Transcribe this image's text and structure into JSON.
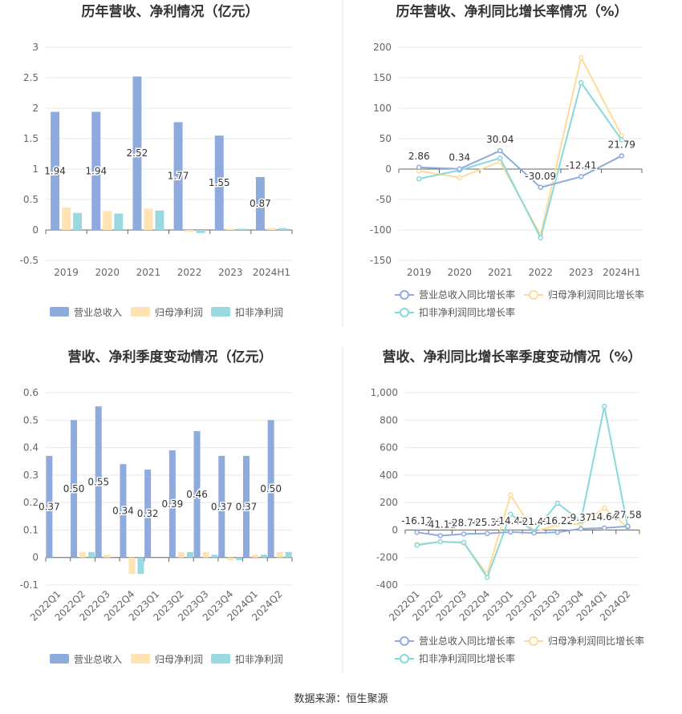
{
  "source_text": "数据来源：恒生聚源",
  "colors": {
    "revenue": "#8faadc",
    "net_profit": "#ffe3b3",
    "deducted_profit": "#9ad9df",
    "revenue_line": "#8faadc",
    "net_profit_line": "#ffdb9a",
    "deducted_line": "#88d8dc",
    "grid": "#e8e8e8",
    "divider": "#e6e6e6"
  },
  "chart_data": [
    {
      "type": "bar",
      "title": "历年营收、净利情况（亿元）",
      "categories": [
        "2019",
        "2020",
        "2021",
        "2022",
        "2023",
        "2024H1"
      ],
      "ylim": [
        -0.5,
        3
      ],
      "yticks": [
        "-0.5",
        "0",
        "0.5",
        "1",
        "1.5",
        "2",
        "2.5",
        "3"
      ],
      "ytick_values": [
        -0.5,
        0,
        0.5,
        1,
        1.5,
        2,
        2.5,
        3
      ],
      "series": [
        {
          "name": "营业总收入",
          "values": [
            1.94,
            1.94,
            2.52,
            1.77,
            1.55,
            0.87
          ],
          "labels": [
            "1.94",
            "1.94",
            "2.52",
            "1.77",
            "1.55",
            "0.87"
          ]
        },
        {
          "name": "归母净利润",
          "values": [
            0.37,
            0.31,
            0.35,
            -0.03,
            0.02,
            0.03
          ]
        },
        {
          "name": "扣非净利润",
          "values": [
            0.28,
            0.27,
            0.32,
            -0.05,
            0.02,
            0.03
          ]
        }
      ],
      "grid": true,
      "legend_position": "bottom"
    },
    {
      "type": "line",
      "title": "历年营收、净利同比增长率情况（%）",
      "categories": [
        "2019",
        "2020",
        "2021",
        "2022",
        "2023",
        "2024H1"
      ],
      "ylim": [
        -150,
        200
      ],
      "yticks": [
        "-150",
        "-100",
        "-50",
        "0",
        "50",
        "100",
        "150",
        "200"
      ],
      "ytick_values": [
        -150,
        -100,
        -50,
        0,
        50,
        100,
        150,
        200
      ],
      "series": [
        {
          "name": "营业总收入同比增长率",
          "values": [
            2.86,
            0.34,
            30.04,
            -30.09,
            -12.41,
            21.79
          ],
          "labels": [
            "2.86",
            "0.34",
            "30.04",
            "-30.09",
            "-12.41",
            "21.79"
          ]
        },
        {
          "name": "归母净利润同比增长率",
          "values": [
            -3,
            -14,
            12,
            -108,
            183,
            55
          ]
        },
        {
          "name": "扣非净利润同比增长率",
          "values": [
            -16,
            -2,
            18,
            -113,
            142,
            48
          ]
        }
      ],
      "grid": true,
      "legend_position": "bottom"
    },
    {
      "type": "bar",
      "title": "营收、净利季度变动情况（亿元）",
      "categories": [
        "2022Q1",
        "2022Q2",
        "2022Q3",
        "2022Q4",
        "2023Q1",
        "2023Q2",
        "2023Q3",
        "2023Q4",
        "2024Q1",
        "2024Q2"
      ],
      "ylim": [
        -0.1,
        0.6
      ],
      "yticks": [
        "-0.1",
        "0",
        "0.1",
        "0.2",
        "0.3",
        "0.4",
        "0.5",
        "0.6"
      ],
      "ytick_values": [
        -0.1,
        0,
        0.1,
        0.2,
        0.3,
        0.4,
        0.5,
        0.6
      ],
      "series": [
        {
          "name": "营业总收入",
          "values": [
            0.37,
            0.5,
            0.55,
            0.34,
            0.32,
            0.39,
            0.46,
            0.37,
            0.37,
            0.5
          ],
          "labels": [
            "0.37",
            "0.50",
            "0.55",
            "0.34",
            "0.32",
            "0.39",
            "0.46",
            "0.37",
            "0.37",
            "0.50"
          ]
        },
        {
          "name": "归母净利润",
          "values": [
            0.0,
            0.02,
            0.01,
            -0.06,
            0.0,
            0.02,
            0.02,
            -0.01,
            0.01,
            0.02
          ]
        },
        {
          "name": "扣非净利润",
          "values": [
            0.0,
            0.02,
            0.0,
            -0.06,
            0.0,
            0.02,
            0.01,
            -0.01,
            0.01,
            0.02
          ]
        }
      ],
      "grid": true,
      "legend_position": "bottom"
    },
    {
      "type": "line",
      "title": "营收、净利同比增长率季度变动情况（%）",
      "categories": [
        "2022Q1",
        "2022Q2",
        "2022Q3",
        "2022Q4",
        "2023Q1",
        "2023Q2",
        "2023Q3",
        "2023Q4",
        "2024Q1",
        "2024Q2"
      ],
      "ylim": [
        -400,
        1000
      ],
      "yticks": [
        "-400",
        "-200",
        "0",
        "200",
        "400",
        "600",
        "800",
        "1,000"
      ],
      "ytick_values": [
        -400,
        -200,
        0,
        200,
        400,
        600,
        800,
        1000
      ],
      "series": [
        {
          "name": "营业总收入同比增长率",
          "values": [
            -16.12,
            -41.11,
            -28.76,
            -25.33,
            -14.41,
            -21.49,
            -16.22,
            9.37,
            14.64,
            27.58
          ],
          "labels": [
            "-16.12",
            "-41.11",
            "-28.76",
            "-25.33",
            "-14.41",
            "-21.49",
            "-16.22",
            "9.37",
            "14.64",
            "27.58"
          ]
        },
        {
          "name": "归母净利润同比增长率",
          "values": [
            -105,
            -85,
            -95,
            -320,
            255,
            -15,
            40,
            45,
            160,
            20
          ]
        },
        {
          "name": "扣非净利润同比增长率",
          "values": [
            -110,
            -85,
            -90,
            -345,
            115,
            -10,
            195,
            65,
            900,
            20
          ]
        }
      ],
      "grid": true,
      "legend_position": "bottom"
    }
  ]
}
